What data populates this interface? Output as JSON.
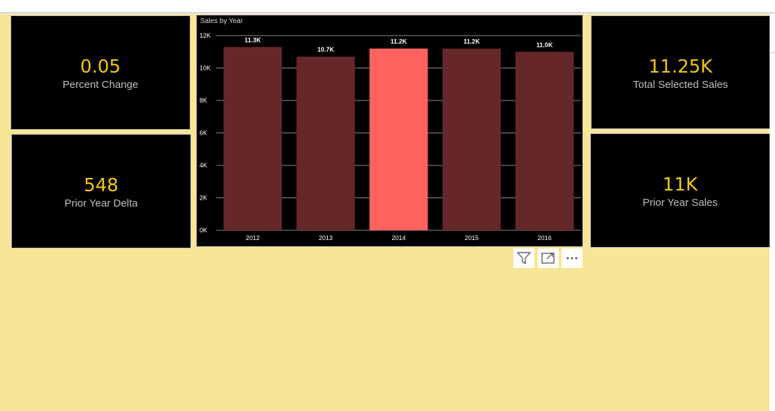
{
  "cards": {
    "percent_change": {
      "value": "0.05",
      "label": "Percent Change"
    },
    "prior_year_delta": {
      "value": "548",
      "label": "Prior Year Delta"
    },
    "total_selected_sales": {
      "value": "11.25K",
      "label": "Total Selected Sales"
    },
    "prior_year_sales": {
      "value": "11K",
      "label": "Prior Year Sales"
    }
  },
  "colors": {
    "background": "#f8e596",
    "card_bg": "#000000",
    "value_color": "#f2c811",
    "label_color": "#bfbfbf",
    "bar_color": "#662728",
    "bar_selected": "#fd625e"
  },
  "visual_header": {
    "icons": [
      "filter-icon",
      "focus-mode-icon",
      "more-options-icon"
    ]
  },
  "chart_data": {
    "type": "bar",
    "title": "Sales by Year",
    "categories": [
      "2012",
      "2013",
      "2014",
      "2015",
      "2016"
    ],
    "values": [
      11300,
      10700,
      11200,
      11200,
      11000
    ],
    "data_labels": [
      "11.3K",
      "10.7K",
      "11.2K",
      "11.2K",
      "11.0K"
    ],
    "selected_index": 2,
    "ylim": [
      0,
      12000
    ],
    "yticks": [
      0,
      2000,
      4000,
      6000,
      8000,
      10000,
      12000
    ],
    "ytick_labels": [
      "0K",
      "2K",
      "4K",
      "6K",
      "8K",
      "10K",
      "12K"
    ],
    "xlabel": "",
    "ylabel": "",
    "grid": true
  }
}
